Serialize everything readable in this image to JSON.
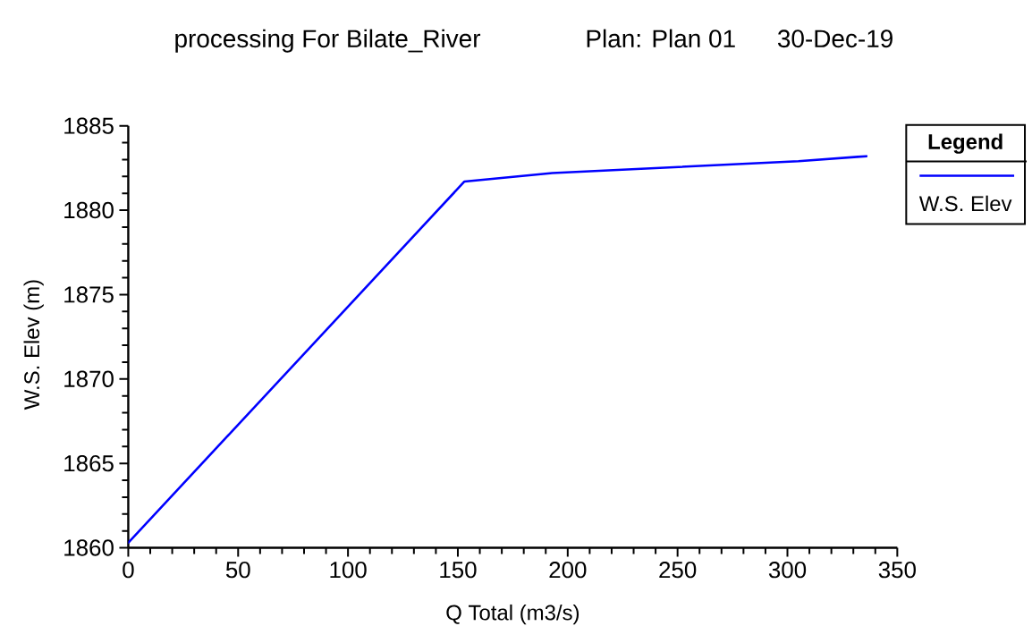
{
  "chart_data": {
    "type": "line",
    "title": "processing For Bilate_River",
    "subtitle": "Plan: Plan 01",
    "annotations": [
      "30-Dec-19"
    ],
    "xlabel": "Q Total (m3/s)",
    "ylabel": "W.S. Elev (m)",
    "legend_title": "Legend",
    "legend": "top right",
    "marker": "none",
    "line_style": "solid",
    "xlim": [
      0,
      350
    ],
    "ylim": [
      1860,
      1885
    ],
    "xticks": [
      0,
      {
        "value": 10,
        "label": null
      },
      {
        "value": 20,
        "label": null
      },
      {
        "value": 30,
        "label": null
      },
      {
        "value": 40,
        "label": null
      },
      50,
      {
        "value": 60,
        "label": null
      },
      {
        "value": 70,
        "label": null
      },
      {
        "value": 80,
        "label": null
      },
      {
        "value": 90,
        "label": null
      },
      100,
      {
        "value": 110,
        "label": null
      },
      {
        "value": 120,
        "label": null
      },
      {
        "value": 130,
        "label": null
      },
      {
        "value": 140,
        "label": null
      },
      150,
      {
        "value": 160,
        "label": null
      },
      {
        "value": 170,
        "label": null
      },
      {
        "value": 180,
        "label": null
      },
      {
        "value": 190,
        "label": null
      },
      200,
      {
        "value": 210,
        "label": null
      },
      {
        "value": 220,
        "label": null
      },
      {
        "value": 230,
        "label": null
      },
      {
        "value": 240,
        "label": null
      },
      250,
      {
        "value": 260,
        "label": null
      },
      {
        "value": 270,
        "label": null
      },
      {
        "value": 280,
        "label": null
      },
      {
        "value": 290,
        "label": null
      },
      300,
      {
        "value": 310,
        "label": null
      },
      {
        "value": 320,
        "label": null
      },
      {
        "value": 330,
        "label": null
      },
      {
        "value": 340,
        "label": null
      },
      350
    ],
    "yticks": [
      1860,
      {
        "value": 1861,
        "label": null
      },
      {
        "value": 1862,
        "label": null
      },
      {
        "value": 1863,
        "label": null
      },
      {
        "value": 1864,
        "label": null
      },
      1865,
      {
        "value": 1866,
        "label": null
      },
      {
        "value": 1867,
        "label": null
      },
      {
        "value": 1868,
        "label": null
      },
      {
        "value": 1869,
        "label": null
      },
      1870,
      {
        "value": 1871,
        "label": null
      },
      {
        "value": 1872,
        "label": null
      },
      {
        "value": 1873,
        "label": null
      },
      {
        "value": 1874,
        "label": null
      },
      1875,
      {
        "value": 1876,
        "label": null
      },
      {
        "value": 1877,
        "label": null
      },
      {
        "value": 1878,
        "label": null
      },
      {
        "value": 1879,
        "label": null
      },
      1880,
      {
        "value": 1881,
        "label": null
      },
      {
        "value": 1882,
        "label": null
      },
      {
        "value": 1883,
        "label": null
      },
      {
        "value": 1884,
        "label": null
      },
      1885
    ],
    "series": [
      {
        "name": "W.S. Elev",
        "color": "#0000ff",
        "x": [
          0,
          153,
          193,
          305,
          336
        ],
        "values": [
          1860.3,
          1881.7,
          1882.2,
          1882.9,
          1883.2
        ]
      }
    ]
  }
}
